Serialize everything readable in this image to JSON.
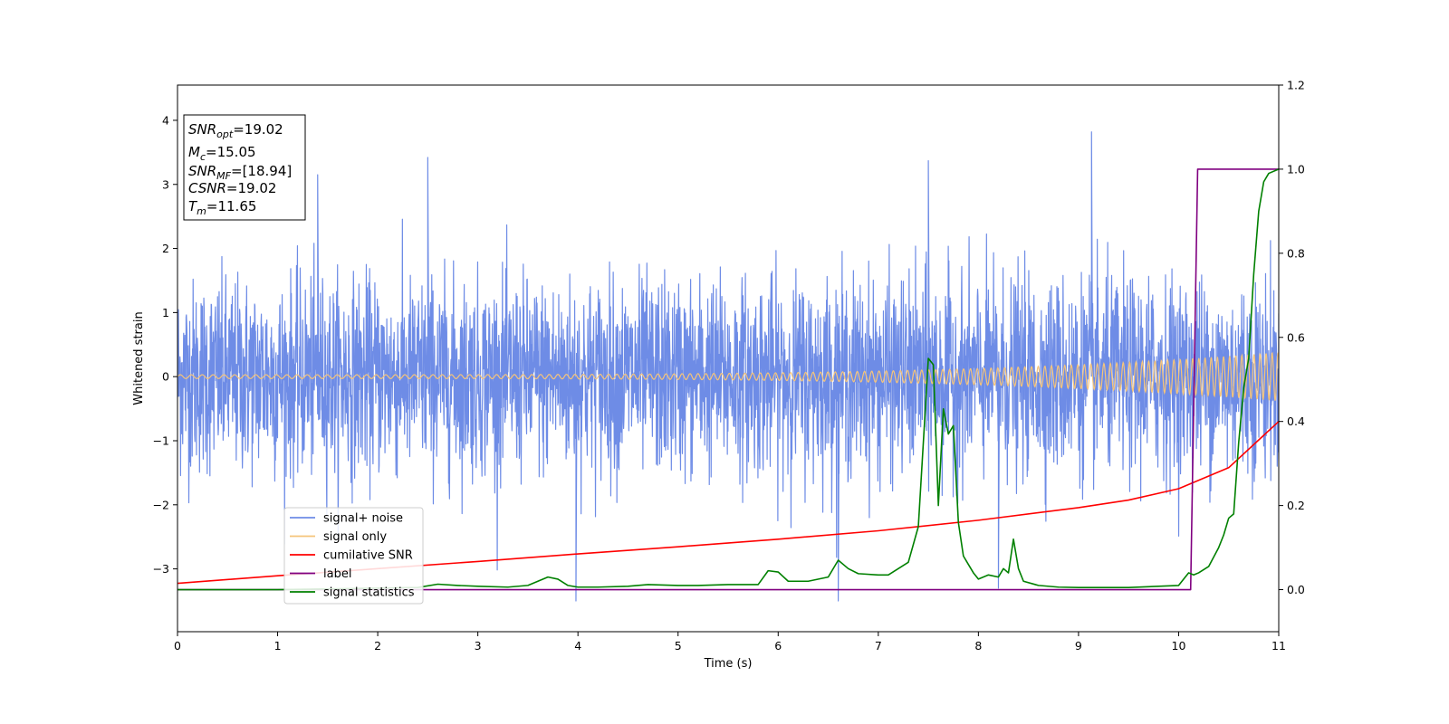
{
  "chart_data": {
    "type": "line",
    "xlabel": "Time (s)",
    "ylabel": "Whitened strain",
    "xlim": [
      0,
      11
    ],
    "ylim_left": [
      -3.98,
      4.55
    ],
    "ylim_right": [
      -0.1,
      1.2
    ],
    "x_ticks": [
      0,
      1,
      2,
      3,
      4,
      5,
      6,
      7,
      8,
      9,
      10,
      11
    ],
    "y_ticks_left": [
      -3,
      -2,
      -1,
      0,
      1,
      2,
      3,
      4
    ],
    "y_ticks_right": [
      0.0,
      0.2,
      0.4,
      0.6,
      0.8,
      1.0,
      1.2
    ],
    "series": [
      {
        "name": "signal+ noise",
        "axis": "left",
        "color": "#6e8ce6",
        "style": "noise",
        "amplitude_sigma": 0.75,
        "spike_max": 3.82,
        "spike_min": -3.5
      },
      {
        "name": "signal only",
        "axis": "left",
        "color": "#f5c47a",
        "style": "chirp",
        "start_amplitude": 0.03,
        "end_amplitude": 0.38
      },
      {
        "name": "cumilative SNR",
        "axis": "right",
        "color": "#ff0000",
        "x": [
          0,
          1,
          2,
          3,
          4,
          5,
          6,
          7,
          8,
          9,
          9.5,
          10,
          10.5,
          11
        ],
        "values": [
          0.015,
          0.033,
          0.05,
          0.067,
          0.085,
          0.102,
          0.12,
          0.14,
          0.165,
          0.195,
          0.213,
          0.24,
          0.29,
          0.4
        ]
      },
      {
        "name": "label",
        "axis": "right",
        "color": "#800080",
        "x": [
          0,
          10.12,
          10.19,
          11
        ],
        "values": [
          0,
          0,
          1,
          1
        ]
      },
      {
        "name": "signal statistics",
        "axis": "right",
        "color": "#008000",
        "x": [
          0,
          1.0,
          2.4,
          2.6,
          2.8,
          3.0,
          3.3,
          3.5,
          3.7,
          3.8,
          3.9,
          4.0,
          4.2,
          4.5,
          4.7,
          5.0,
          5.2,
          5.5,
          5.8,
          5.9,
          6.0,
          6.1,
          6.3,
          6.5,
          6.6,
          6.7,
          6.8,
          7.0,
          7.1,
          7.2,
          7.3,
          7.4,
          7.5,
          7.55,
          7.6,
          7.65,
          7.7,
          7.75,
          7.8,
          7.85,
          7.9,
          7.95,
          8.0,
          8.1,
          8.2,
          8.25,
          8.3,
          8.35,
          8.4,
          8.45,
          8.6,
          8.8,
          9.0,
          9.5,
          10.0,
          10.1,
          10.15,
          10.2,
          10.3,
          10.4,
          10.45,
          10.5,
          10.55,
          10.6,
          10.65,
          10.7,
          10.75,
          10.8,
          10.85,
          10.9,
          11.0
        ],
        "values": [
          0.0,
          0.0,
          0.005,
          0.013,
          0.01,
          0.008,
          0.006,
          0.01,
          0.03,
          0.025,
          0.01,
          0.006,
          0.006,
          0.008,
          0.012,
          0.01,
          0.01,
          0.012,
          0.012,
          0.045,
          0.042,
          0.02,
          0.02,
          0.03,
          0.07,
          0.05,
          0.038,
          0.035,
          0.035,
          0.05,
          0.065,
          0.15,
          0.55,
          0.535,
          0.2,
          0.43,
          0.37,
          0.39,
          0.16,
          0.08,
          0.06,
          0.04,
          0.025,
          0.035,
          0.03,
          0.05,
          0.04,
          0.12,
          0.05,
          0.02,
          0.01,
          0.006,
          0.005,
          0.005,
          0.01,
          0.04,
          0.035,
          0.04,
          0.055,
          0.1,
          0.13,
          0.17,
          0.18,
          0.35,
          0.48,
          0.55,
          0.75,
          0.9,
          0.97,
          0.99,
          1.0
        ]
      }
    ],
    "annotation": {
      "lines": [
        {
          "base": "SNR",
          "sub": "opt",
          "value": "=19.02",
          "italic": true
        },
        {
          "base": "M",
          "sub": "c",
          "value": "=15.05",
          "italic": true
        },
        {
          "base": "SNR",
          "sub": "MF",
          "value": "=[18.94]",
          "italic": true
        },
        {
          "base": "CSNR",
          "sub": "",
          "value": "=19.02",
          "italic": true
        },
        {
          "base": "T",
          "sub": "m",
          "value": "=11.65",
          "italic": true
        }
      ]
    },
    "legend": {
      "placement": "lower-left",
      "entries": [
        {
          "label": "signal+ noise",
          "color": "#6e8ce6"
        },
        {
          "label": "signal only",
          "color": "#f5c47a"
        },
        {
          "label": "cumilative SNR",
          "color": "#ff0000"
        },
        {
          "label": "label",
          "color": "#800080"
        },
        {
          "label": "signal statistics",
          "color": "#008000"
        }
      ]
    }
  }
}
